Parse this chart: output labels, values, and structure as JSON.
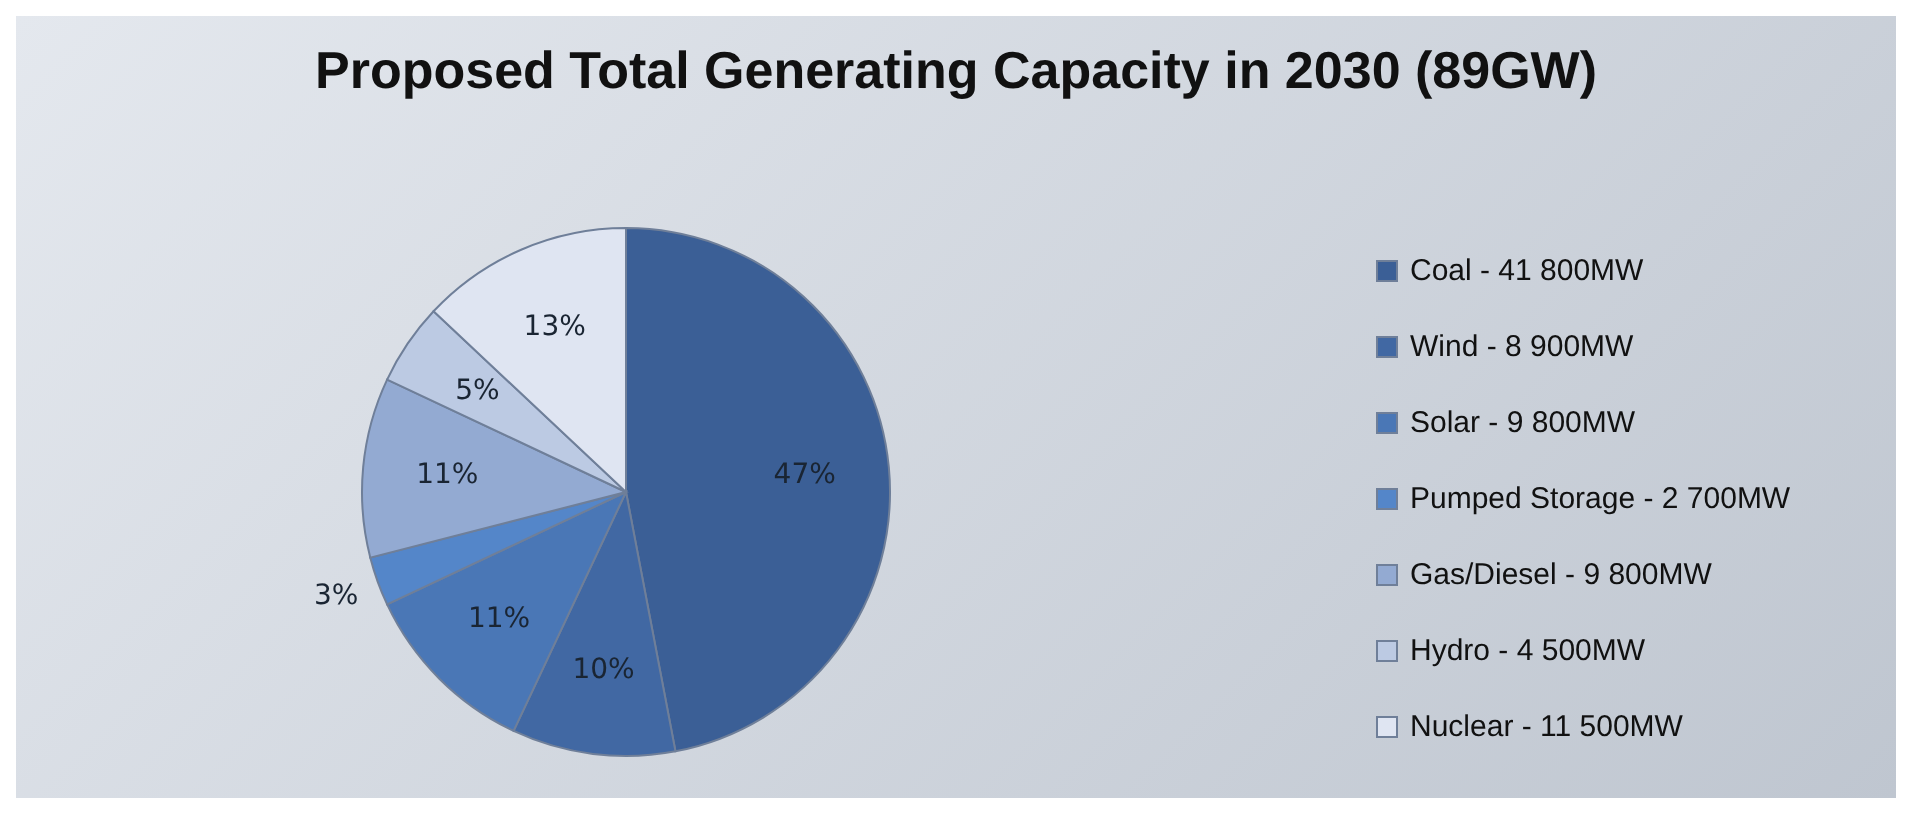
{
  "chart_data": {
    "type": "pie",
    "title": "Proposed Total Generating Capacity in 2030 (89GW)",
    "categories": [
      "Coal - 41 800MW",
      "Wind - 8 900MW",
      "Solar - 9 800MW",
      "Pumped Storage - 2 700MW",
      "Gas/Diesel - 9 800MW",
      "Hydro - 4 500MW",
      "Nuclear - 11 500MW"
    ],
    "values": [
      47,
      10,
      11,
      3,
      11,
      5,
      13
    ],
    "value_labels": [
      "47%",
      "10%",
      "11%",
      "3%",
      "11%",
      "5%",
      "13%"
    ],
    "colors": [
      "#3b5f96",
      "#4168a3",
      "#4a77b6",
      "#5486c9",
      "#93aad2",
      "#bccae3",
      "#dfe5f2"
    ],
    "legend": "right"
  }
}
